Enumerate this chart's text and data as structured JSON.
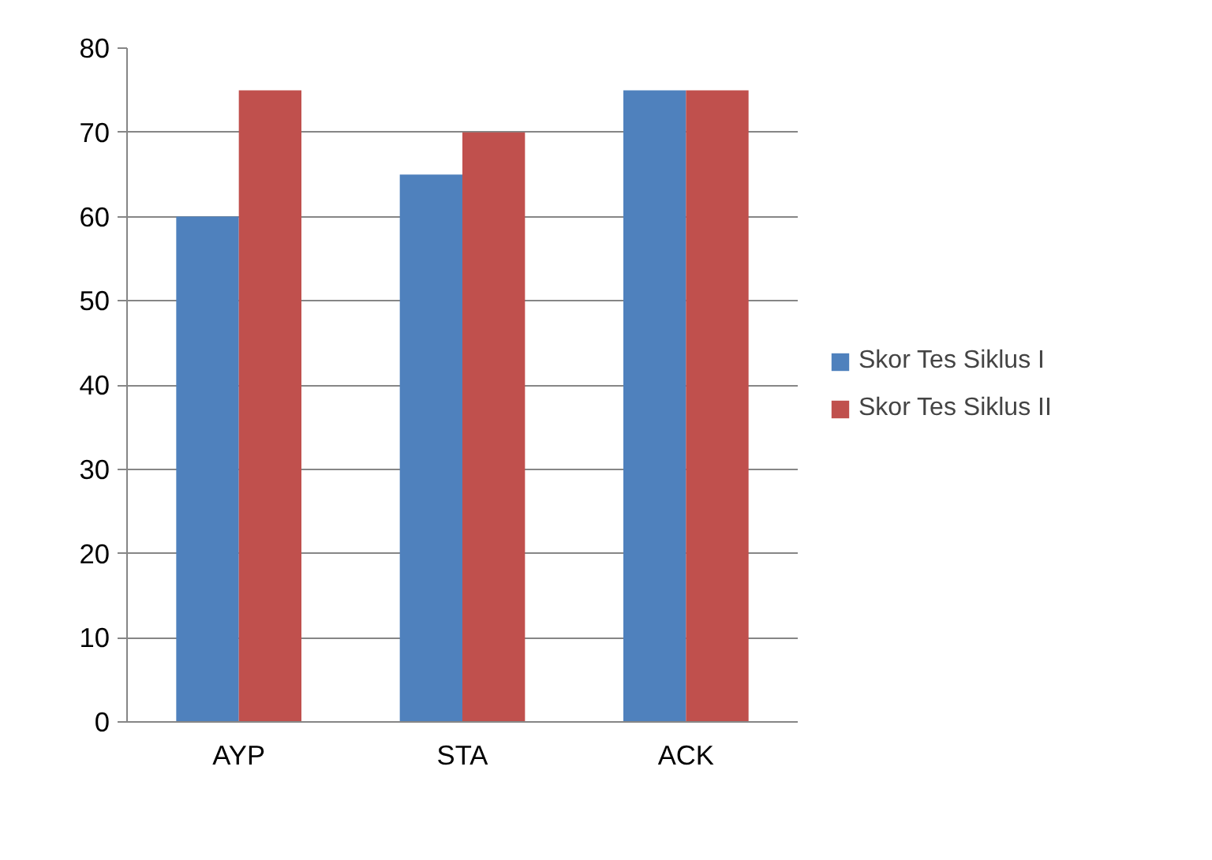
{
  "chart_data": {
    "type": "bar",
    "categories": [
      "AYP",
      "STA",
      "ACK"
    ],
    "series": [
      {
        "name": "Skor Tes Siklus I",
        "color": "#4f81bd",
        "values": [
          60,
          65,
          75
        ]
      },
      {
        "name": "Skor Tes Siklus II",
        "color": "#c0504d",
        "values": [
          75,
          70,
          75
        ]
      }
    ],
    "ylim": [
      0,
      80
    ],
    "yticks": [
      0,
      10,
      20,
      30,
      40,
      50,
      60,
      70,
      80
    ],
    "grid": "y",
    "legend": "right"
  }
}
